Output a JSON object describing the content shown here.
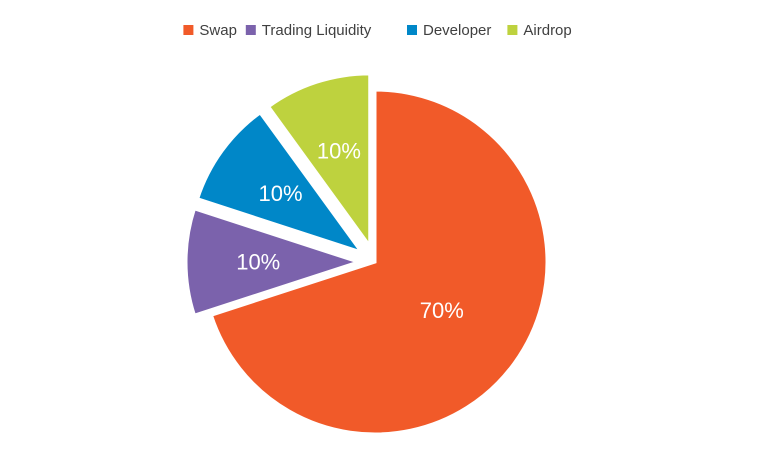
{
  "chart_data": {
    "type": "pie",
    "title": "",
    "legend_position": "top",
    "slices": [
      {
        "name": "Swap",
        "value": 70,
        "label": "70%",
        "color": "#F15A29",
        "exploded": false
      },
      {
        "name": "Trading Liquidity",
        "value": 10,
        "label": "10%",
        "color": "#7B62AC",
        "exploded": true
      },
      {
        "name": "Developer",
        "value": 10,
        "label": "10%",
        "color": "#0087C8",
        "exploded": true
      },
      {
        "name": "Airdrop",
        "value": 10,
        "label": "10%",
        "color": "#BED23E",
        "exploded": true
      }
    ]
  }
}
